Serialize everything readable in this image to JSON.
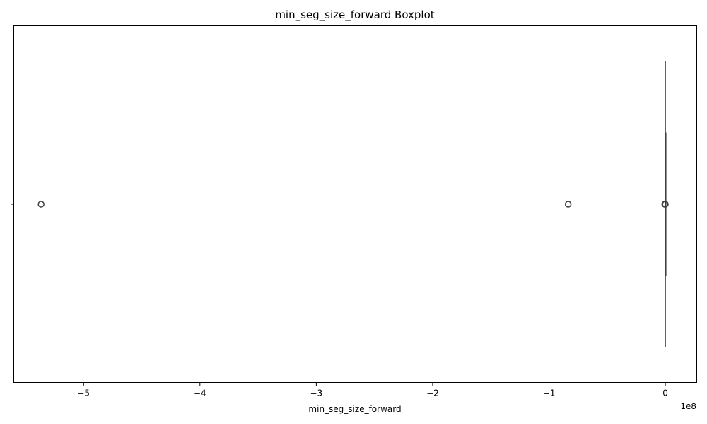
{
  "chart_data": {
    "type": "box",
    "title": "min_seg_size_forward Boxplot",
    "xlabel": "min_seg_size_forward",
    "ylabel": "",
    "x_offset_label": "1e8",
    "x_multiplier": 100000000,
    "xlim": [
      -5.6,
      0.27
    ],
    "x_ticks": [
      -5,
      -4,
      -3,
      -2,
      -1,
      0
    ],
    "x_tick_labels": [
      "−5",
      "−4",
      "−3",
      "−2",
      "−1",
      "0"
    ],
    "grid": false,
    "orientation": "horizontal",
    "box": {
      "q1": 0,
      "median": 0,
      "q3": 0,
      "whisker_low": 0,
      "whisker_high": 0
    },
    "outliers": [
      -5.365,
      -0.835,
      -0.005,
      0.0
    ]
  }
}
